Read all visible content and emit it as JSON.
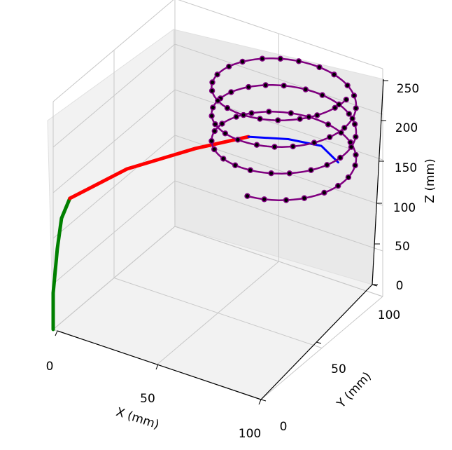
{
  "chart_data": {
    "type": "line3d",
    "xlabel": "X (mm)",
    "ylabel": "Y (mm)",
    "zlabel": "Z (mm)",
    "x_ticks": [
      "0",
      "50",
      "100"
    ],
    "y_ticks": [
      "0",
      "50",
      "100"
    ],
    "z_ticks": [
      "0",
      "50",
      "100",
      "150",
      "200",
      "250"
    ],
    "xlim": [
      0,
      100
    ],
    "ylim": [
      0,
      100
    ],
    "zlim": [
      0,
      250
    ],
    "grid": true,
    "colors": {
      "segment_1": "#008000",
      "segment_2": "#ff0000",
      "segment_3": "#0000ff",
      "helix": "#800080",
      "helix_markers": "#000000"
    },
    "segments": [
      {
        "color": "green",
        "note_points": [
          [
            0,
            0,
            0
          ],
          [
            0,
            0,
            40
          ],
          [
            2,
            0,
            90
          ],
          [
            4,
            0,
            125
          ],
          [
            8,
            0,
            150
          ]
        ]
      },
      {
        "color": "red",
        "note_points": [
          [
            8,
            0,
            150
          ],
          [
            25,
            18,
            175
          ],
          [
            45,
            40,
            188
          ],
          [
            60,
            58,
            192
          ]
        ]
      },
      {
        "color": "blue",
        "note_points": [
          [
            60,
            58,
            192
          ],
          [
            75,
            65,
            193
          ],
          [
            88,
            70,
            190
          ],
          [
            95,
            72,
            175
          ]
        ]
      }
    ],
    "helix": {
      "center": [
        70,
        70
      ],
      "radius": 30,
      "z_range": [
        155,
        250
      ],
      "turns": 3.25,
      "marker_count": 75
    }
  }
}
